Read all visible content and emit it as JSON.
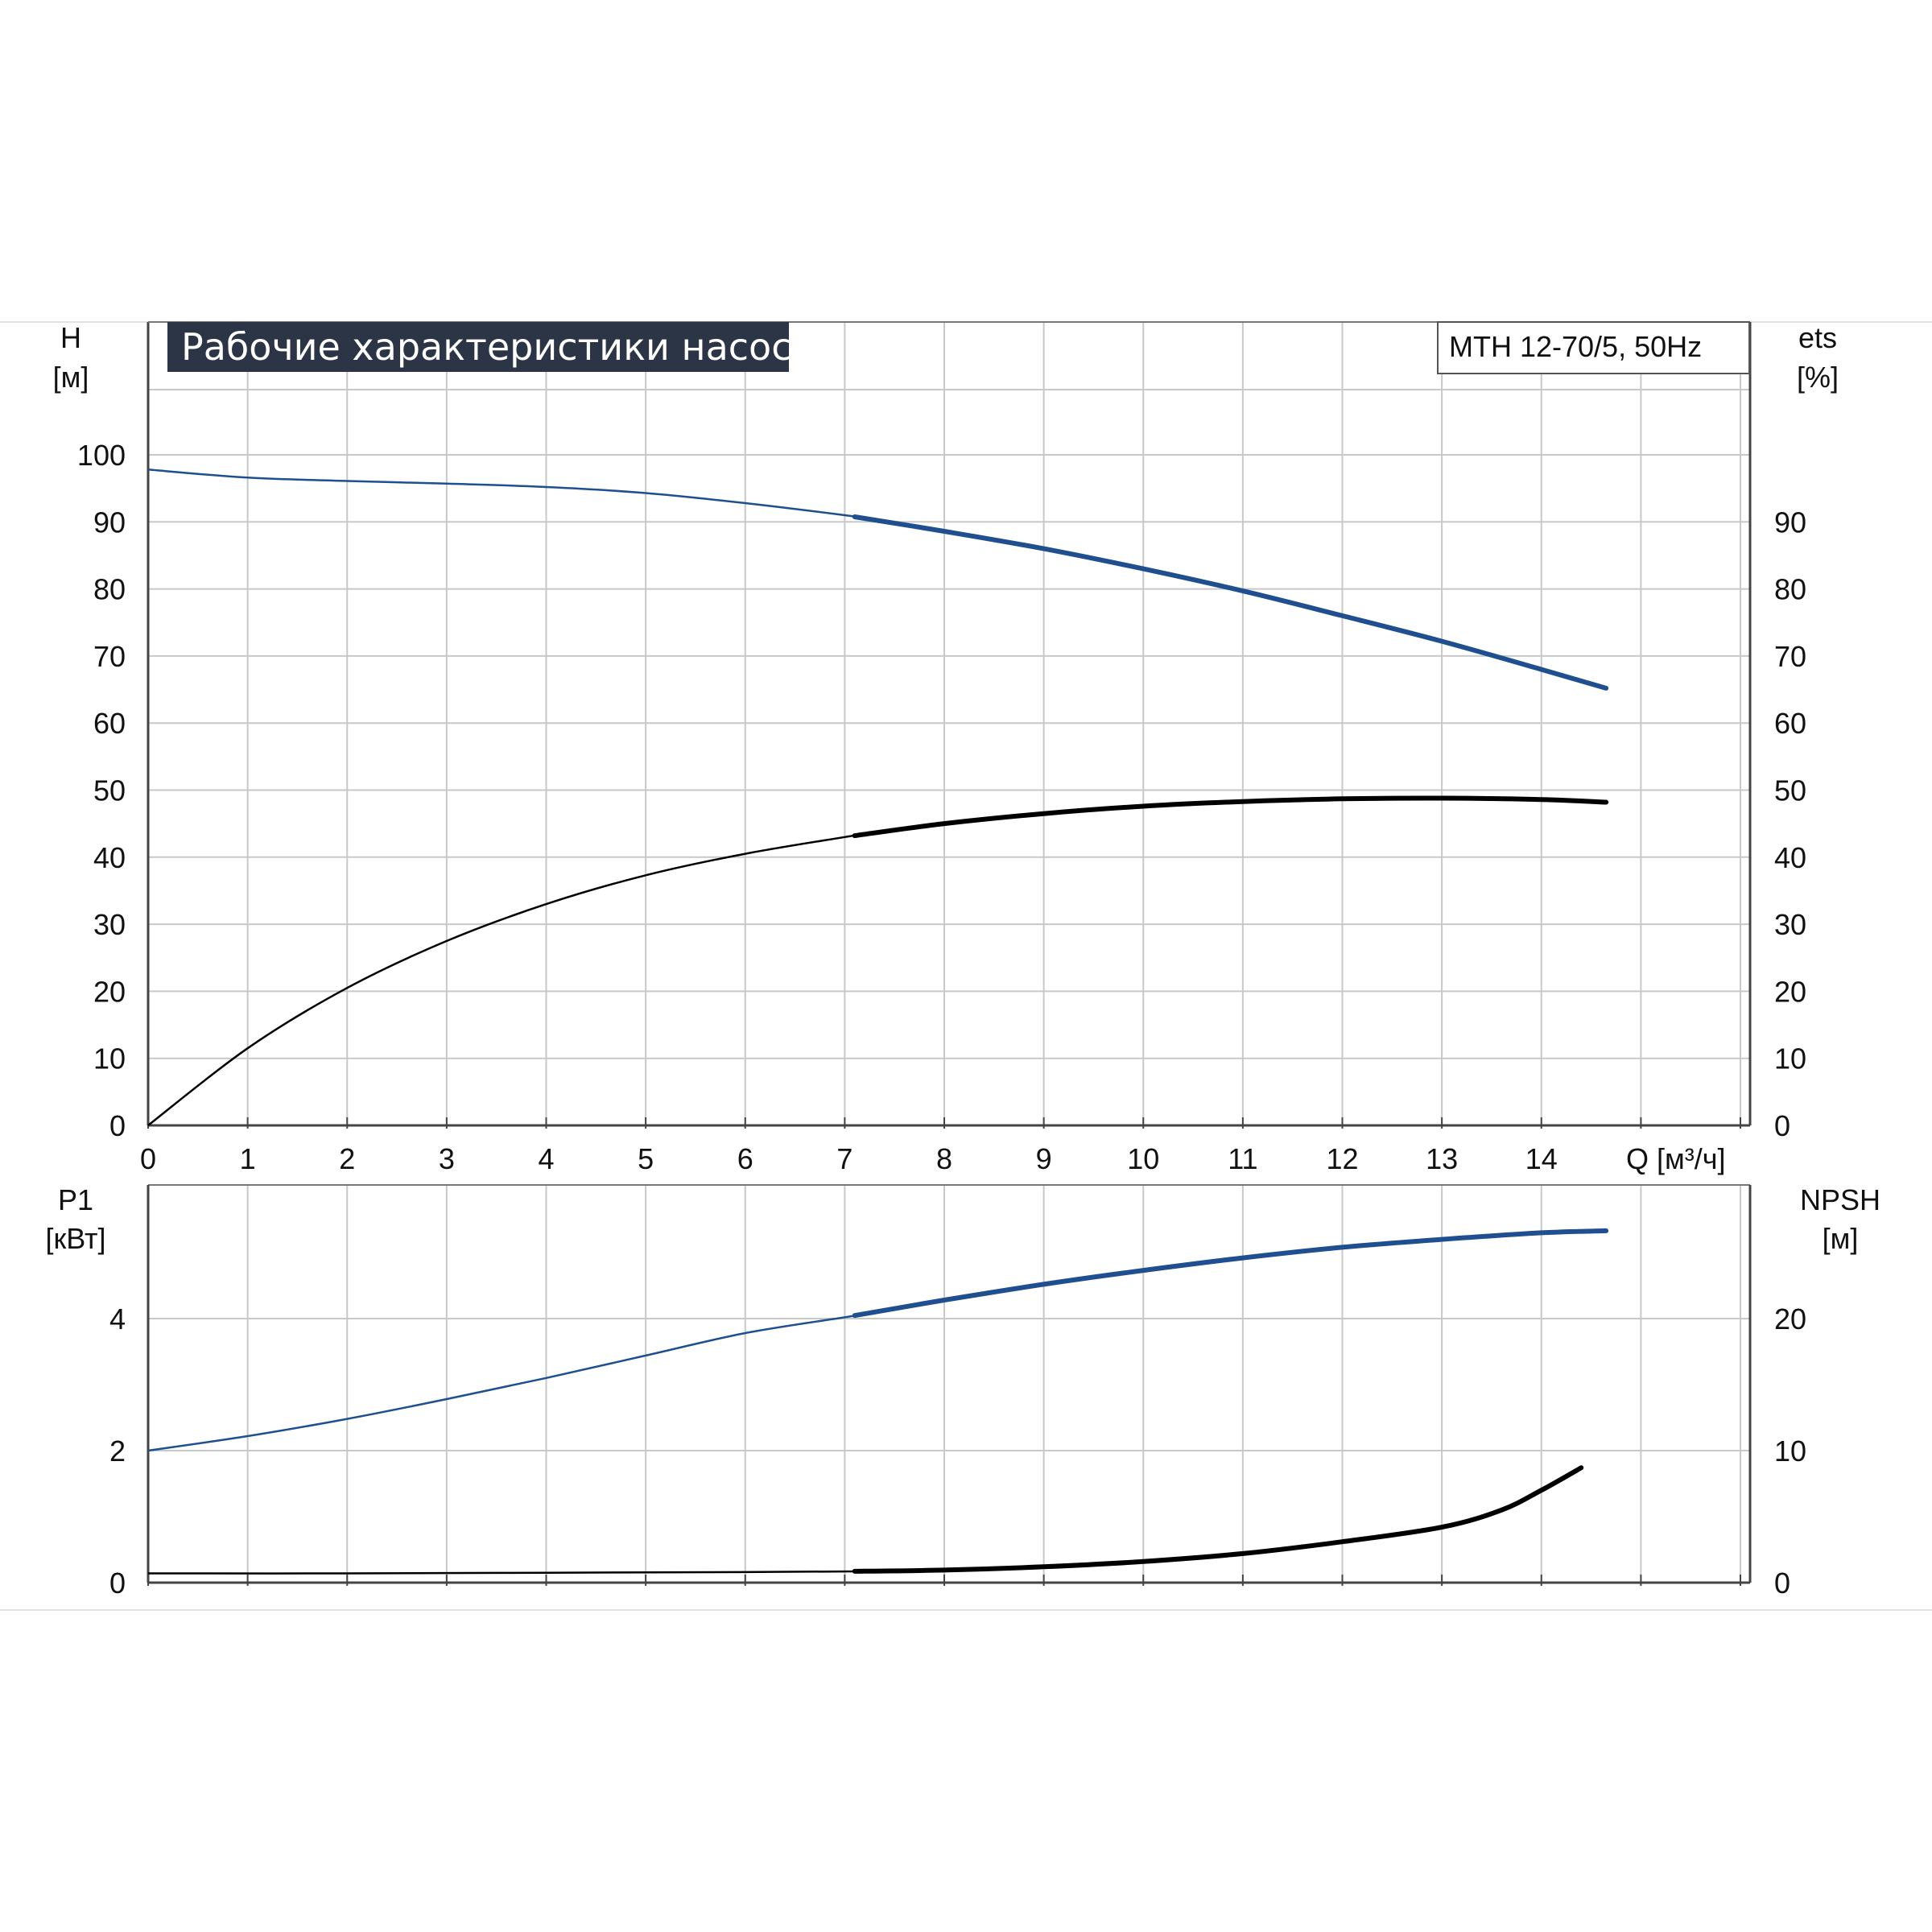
{
  "title": "Рабочие характеристики насоса",
  "model": "MTH 12-70/5, 50Hz",
  "colors": {
    "blue": "#1f4f8f",
    "black": "#000000",
    "grid": "#c8c8c8",
    "title_bg": "#2b3545"
  },
  "axes": {
    "top_left_label": "H",
    "top_left_unit": "[м]",
    "top_right_label": "ets",
    "top_right_unit": "[%]",
    "x_label": "Q [м³/ч]",
    "bottom_left_label": "P1",
    "bottom_left_unit": "[кВт]",
    "bottom_right_label": "NPSH",
    "bottom_right_unit": "[м]"
  },
  "chart_data": [
    {
      "type": "line",
      "panel": "top",
      "x_ticks": [
        "0",
        "1",
        "2",
        "3",
        "4",
        "5",
        "6",
        "7",
        "8",
        "9",
        "10",
        "11",
        "12",
        "13",
        "14"
      ],
      "y_left_ticks": [
        "0",
        "10",
        "20",
        "30",
        "40",
        "50",
        "60",
        "70",
        "80",
        "90",
        "100"
      ],
      "y_right_ticks": [
        "0",
        "10",
        "20",
        "30",
        "40",
        "50",
        "60",
        "70",
        "80",
        "90"
      ],
      "xlim": [
        0,
        16
      ],
      "ylim": [
        0,
        110
      ],
      "series": [
        {
          "axis": "left",
          "color": "blue",
          "emphasis_from": 7.1,
          "points": [
            [
              0,
              97.8
            ],
            [
              1,
              96.6
            ],
            [
              2,
              96.1
            ],
            [
              3,
              95.7
            ],
            [
              4,
              95.2
            ],
            [
              5,
              94.3
            ],
            [
              6,
              92.8
            ],
            [
              7,
              91.0
            ],
            [
              8,
              88.6
            ],
            [
              9,
              86.0
            ],
            [
              10,
              83.0
            ],
            [
              11,
              79.7
            ],
            [
              12,
              76.0
            ],
            [
              13,
              72.2
            ],
            [
              14,
              68.0
            ],
            [
              14.65,
              65.2
            ]
          ]
        },
        {
          "axis": "right",
          "color": "black",
          "emphasis_from": 7.1,
          "points": [
            [
              0,
              0
            ],
            [
              1,
              11.5
            ],
            [
              2,
              20.5
            ],
            [
              3,
              27.5
            ],
            [
              4,
              33.0
            ],
            [
              5,
              37.3
            ],
            [
              6,
              40.5
            ],
            [
              7,
              43.0
            ],
            [
              8,
              45.0
            ],
            [
              9,
              46.5
            ],
            [
              10,
              47.6
            ],
            [
              11,
              48.3
            ],
            [
              12,
              48.7
            ],
            [
              13,
              48.8
            ],
            [
              14,
              48.6
            ],
            [
              14.65,
              48.2
            ]
          ]
        }
      ]
    },
    {
      "type": "line",
      "panel": "bottom",
      "y_left_ticks": [
        "0",
        "2",
        "4"
      ],
      "y_right_ticks": [
        "0",
        "10",
        "20"
      ],
      "ylim_left": [
        0,
        5.7
      ],
      "ylim_right": [
        0,
        28.5
      ],
      "series": [
        {
          "axis": "left",
          "color": "blue",
          "emphasis_from": 7.1,
          "points": [
            [
              0,
              2.0
            ],
            [
              1,
              2.22
            ],
            [
              2,
              2.48
            ],
            [
              3,
              2.78
            ],
            [
              4,
              3.1
            ],
            [
              5,
              3.44
            ],
            [
              6,
              3.78
            ],
            [
              7,
              4.02
            ],
            [
              8,
              4.28
            ],
            [
              9,
              4.52
            ],
            [
              10,
              4.73
            ],
            [
              11,
              4.92
            ],
            [
              12,
              5.08
            ],
            [
              13,
              5.2
            ],
            [
              14,
              5.3
            ],
            [
              14.65,
              5.33
            ]
          ]
        },
        {
          "axis": "right",
          "color": "black",
          "emphasis_from": 7.1,
          "points": [
            [
              0,
              0.7
            ],
            [
              2,
              0.7
            ],
            [
              4,
              0.75
            ],
            [
              6,
              0.8
            ],
            [
              7,
              0.85
            ],
            [
              8,
              0.95
            ],
            [
              9,
              1.2
            ],
            [
              10,
              1.6
            ],
            [
              11,
              2.2
            ],
            [
              12,
              3.1
            ],
            [
              13,
              4.2
            ],
            [
              13.6,
              5.5
            ],
            [
              14,
              7.0
            ],
            [
              14.4,
              8.7
            ]
          ]
        }
      ]
    }
  ]
}
